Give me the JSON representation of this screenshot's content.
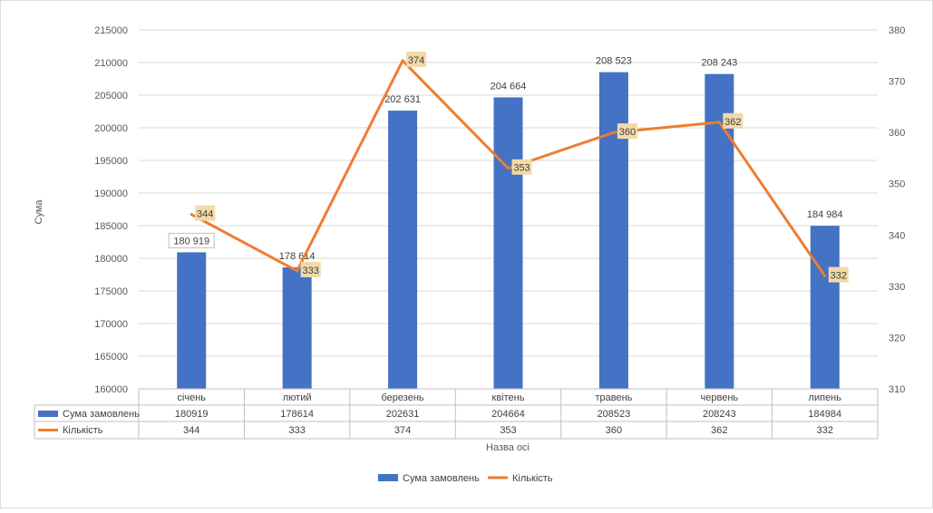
{
  "chart_data": {
    "type": "bar",
    "categories": [
      "січень",
      "лютий",
      "березень",
      "квітень",
      "травень",
      "червень",
      "липень"
    ],
    "series": [
      {
        "name": "Сума замовлень",
        "type": "bar",
        "axis": "left",
        "color": "#4472C4",
        "values": [
          180919,
          178614,
          202631,
          204664,
          208523,
          208243,
          184984
        ],
        "data_labels": [
          "180 919",
          "178 614",
          "202 631",
          "204 664",
          "208 523",
          "208 243",
          "184 984"
        ],
        "table_values": [
          "180919",
          "178614",
          "202631",
          "204664",
          "208523",
          "208243",
          "184984"
        ]
      },
      {
        "name": "Кількість",
        "type": "line",
        "axis": "right",
        "color": "#ED7D31",
        "values": [
          344,
          333,
          374,
          353,
          360,
          362,
          332
        ],
        "data_labels": [
          "344",
          "333",
          "374",
          "353",
          "360",
          "362",
          "332"
        ],
        "table_values": [
          "344",
          "333",
          "374",
          "353",
          "360",
          "362",
          "332"
        ]
      }
    ],
    "ylabel": "Сума",
    "xlabel": "Назва осі",
    "ylim": [
      160000,
      215000
    ],
    "y_ticks": [
      "215000",
      "210000",
      "205000",
      "200000",
      "195000",
      "190000",
      "185000",
      "180000",
      "175000",
      "170000",
      "165000",
      "160000"
    ],
    "y2lim": [
      310,
      380
    ],
    "y2_ticks": [
      "380",
      "370",
      "360",
      "350",
      "340",
      "330",
      "320",
      "310"
    ],
    "grid": true,
    "legend": "bottom",
    "data_table": true,
    "line_label_fill": "#F2D9A8"
  }
}
